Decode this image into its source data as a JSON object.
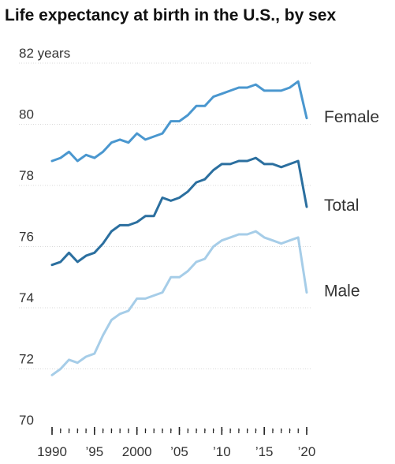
{
  "chart_data": {
    "type": "line",
    "title": "Life expectancy at birth in the U.S., by sex",
    "ylim": [
      70,
      82
    ],
    "yticks": [
      70,
      72,
      74,
      76,
      78,
      80,
      82
    ],
    "ytick_labels": [
      "70",
      "72",
      "74",
      "76",
      "78",
      "80",
      "82 years"
    ],
    "xlim": [
      1990,
      2020
    ],
    "xticks": [
      1990,
      1995,
      2000,
      2005,
      2010,
      2015,
      2020
    ],
    "xtick_labels": [
      "1990",
      "’95",
      "2000",
      "’05",
      "’10",
      "’15",
      "’20"
    ],
    "x": [
      1990,
      1991,
      1992,
      1993,
      1994,
      1995,
      1996,
      1997,
      1998,
      1999,
      2000,
      2001,
      2002,
      2003,
      2004,
      2005,
      2006,
      2007,
      2008,
      2009,
      2010,
      2011,
      2012,
      2013,
      2014,
      2015,
      2016,
      2017,
      2018,
      2019,
      2020
    ],
    "grid": true,
    "legend": "inline-right",
    "series": [
      {
        "name": "Female",
        "color": "#4a97cf",
        "values": [
          78.8,
          78.9,
          79.1,
          78.8,
          79.0,
          78.9,
          79.1,
          79.4,
          79.5,
          79.4,
          79.7,
          79.5,
          79.6,
          79.7,
          80.1,
          80.1,
          80.3,
          80.6,
          80.6,
          80.9,
          81.0,
          81.1,
          81.2,
          81.2,
          81.3,
          81.1,
          81.1,
          81.1,
          81.2,
          81.4,
          80.2
        ]
      },
      {
        "name": "Total",
        "color": "#2b6f9f",
        "values": [
          75.4,
          75.5,
          75.8,
          75.5,
          75.7,
          75.8,
          76.1,
          76.5,
          76.7,
          76.7,
          76.8,
          77.0,
          77.0,
          77.6,
          77.5,
          77.6,
          77.8,
          78.1,
          78.2,
          78.5,
          78.7,
          78.7,
          78.8,
          78.8,
          78.9,
          78.7,
          78.7,
          78.6,
          78.7,
          78.8,
          77.3
        ]
      },
      {
        "name": "Male",
        "color": "#a6cde8",
        "values": [
          71.8,
          72.0,
          72.3,
          72.2,
          72.4,
          72.5,
          73.1,
          73.6,
          73.8,
          73.9,
          74.3,
          74.3,
          74.4,
          74.5,
          75.0,
          75.0,
          75.2,
          75.5,
          75.6,
          76.0,
          76.2,
          76.3,
          76.4,
          76.4,
          76.5,
          76.3,
          76.2,
          76.1,
          76.2,
          76.3,
          74.5
        ]
      }
    ]
  }
}
